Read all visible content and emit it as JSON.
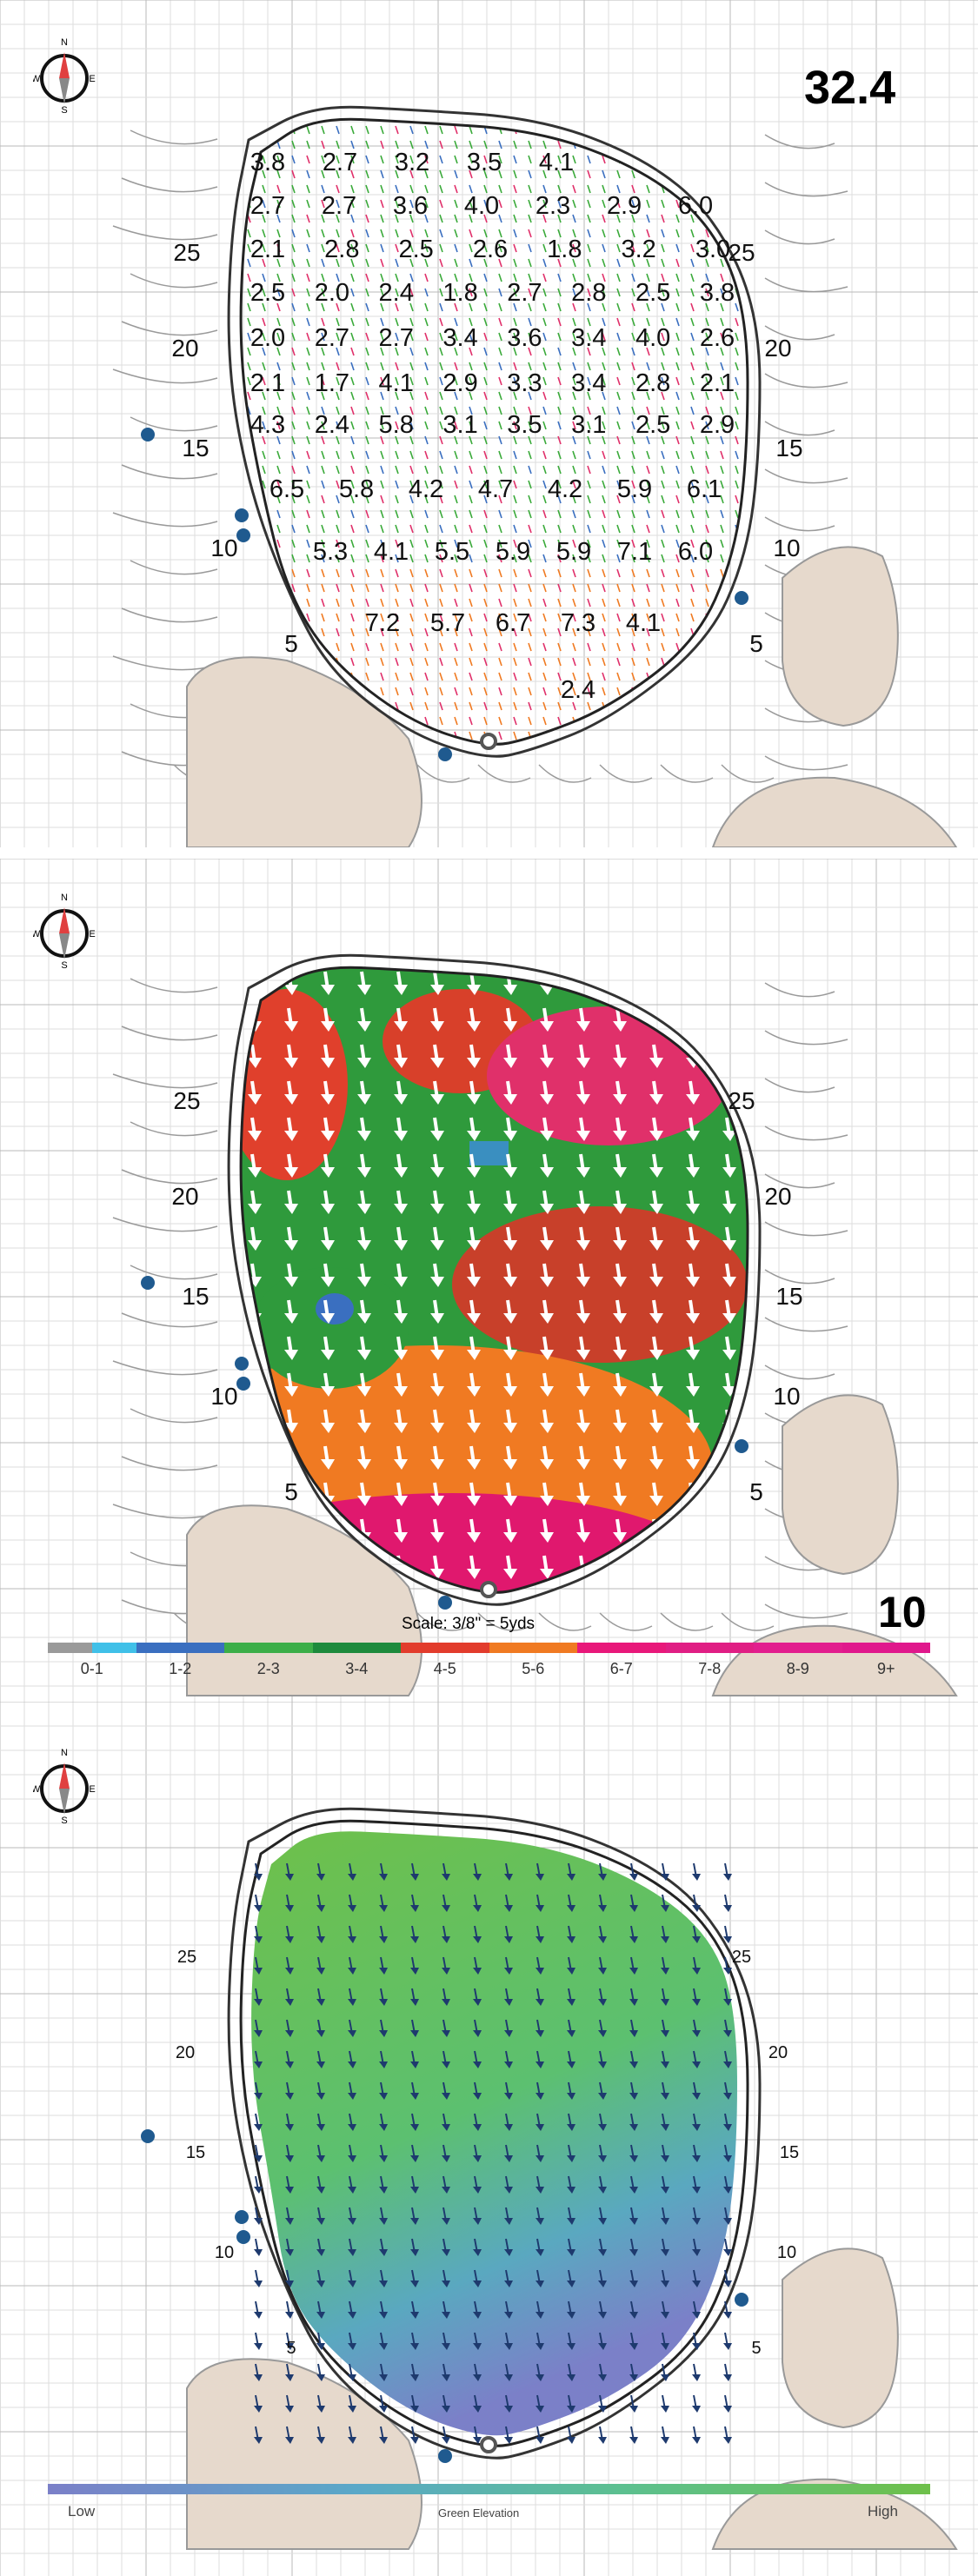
{
  "panel1": {
    "speed_value": "32.4",
    "compass": {
      "n": "N",
      "s": "S",
      "e": "E",
      "w": "W"
    },
    "distance_labels": [
      "25",
      "20",
      "15",
      "10",
      "5"
    ],
    "slope_values": [
      [
        "3.8",
        "2.7",
        "3.2",
        "3.5",
        "4.1"
      ],
      [
        "2.7",
        "2.7",
        "3.6",
        "4.0",
        "2.3",
        "2.9",
        "6.0"
      ],
      [
        "2.1",
        "2.8",
        "2.5",
        "2.6",
        "1.8",
        "3.2",
        "3.0"
      ],
      [
        "2.5",
        "2.0",
        "2.4",
        "1.8",
        "2.7",
        "2.8",
        "2.5",
        "3.8"
      ],
      [
        "2.0",
        "2.7",
        "2.7",
        "3.4",
        "3.6",
        "3.4",
        "4.0",
        "2.6"
      ],
      [
        "2.1",
        "1.7",
        "4.1",
        "2.9",
        "3.3",
        "3.4",
        "2.8",
        "2.1"
      ],
      [
        "4.3",
        "2.4",
        "5.8",
        "3.1",
        "3.5",
        "3.1",
        "2.5",
        "2.9"
      ],
      [
        "6.5",
        "5.8",
        "4.2",
        "4.7",
        "4.2",
        "5.9",
        "6.1"
      ],
      [
        "5.3",
        "4.1",
        "5.5",
        "5.9",
        "5.9",
        "7.1",
        "6.0"
      ],
      [
        "7.2",
        "5.7",
        "6.7",
        "7.3",
        "4.1"
      ],
      [
        "2.4"
      ]
    ]
  },
  "panel2": {
    "hole_number": "10",
    "scale_text": "Scale: 3/8\" = 5yds",
    "compass": {
      "n": "N",
      "s": "S",
      "e": "E",
      "w": "W"
    },
    "distance_labels": [
      "25",
      "20",
      "15",
      "10",
      "5"
    ],
    "legend": [
      {
        "label": "0-1",
        "color": "#9a9a9a",
        "color2": "#40c0e8"
      },
      {
        "label": "1-2",
        "color": "#3a6fc0"
      },
      {
        "label": "2-3",
        "color": "#3cae48"
      },
      {
        "label": "3-4",
        "color": "#1e8a3c"
      },
      {
        "label": "4-5",
        "color": "#e23c2c"
      },
      {
        "label": "5-6",
        "color": "#f07a22"
      },
      {
        "label": "6-7",
        "color": "#e8187a"
      },
      {
        "label": "7-8",
        "color": "#e01e84"
      },
      {
        "label": "8-9",
        "color": "#e21e8e"
      },
      {
        "label": "9+",
        "color": "#e0188c"
      }
    ]
  },
  "panel3": {
    "compass": {
      "n": "N",
      "s": "S",
      "e": "E",
      "w": "W"
    },
    "distance_labels": [
      "25",
      "20",
      "15",
      "10",
      "5"
    ],
    "elevation_low": "Low",
    "elevation_title": "Green Elevation",
    "elevation_high": "High"
  }
}
